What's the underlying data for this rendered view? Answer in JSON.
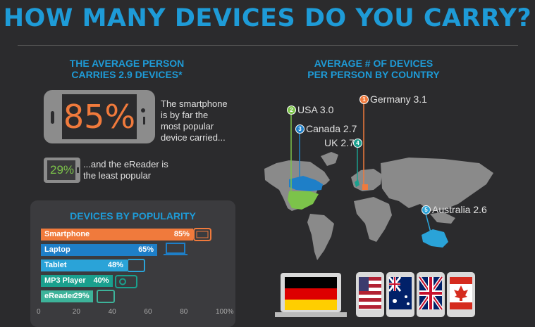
{
  "title": "HOW MANY DEVICES DO YOU CARRY?",
  "average": {
    "line1": "THE AVERAGE PERSON",
    "line2": "CARRIES 2.9 DEVICES*"
  },
  "smartphone_stat": {
    "value": "85%",
    "text": [
      "The smartphone",
      "is by far the",
      "most popular",
      "device carried..."
    ]
  },
  "ereader_stat": {
    "value": "29%",
    "text": [
      "...and the eReader is",
      "the least popular"
    ]
  },
  "popularity": {
    "title": "DEVICES BY POPULARITY"
  },
  "chart_data": {
    "type": "bar",
    "title": "DEVICES BY POPULARITY",
    "orientation": "horizontal",
    "categories": [
      "Smartphone",
      "Laptop",
      "Tablet",
      "MP3 Player",
      "eReader"
    ],
    "values": [
      85,
      65,
      48,
      40,
      29
    ],
    "value_labels": [
      "85%",
      "65%",
      "48%",
      "40%",
      "29%"
    ],
    "colors": [
      "#f07a3c",
      "#1e7fc8",
      "#2aa3d8",
      "#1aa08e",
      "#3db39a"
    ],
    "xlim": [
      0,
      100
    ],
    "xticks": [
      "0",
      "20",
      "40",
      "60",
      "80",
      "100%"
    ]
  },
  "country": {
    "title_line1": "AVERAGE # OF DEVICES",
    "title_line2": "PER PERSON BY COUNTRY",
    "entries": [
      {
        "rank": "1",
        "label": "Germany 3.1",
        "color": "#f07a3c"
      },
      {
        "rank": "2",
        "label": "USA 3.0",
        "color": "#7cc34a"
      },
      {
        "rank": "3",
        "label": "Canada 2.7",
        "color": "#1e7fc8"
      },
      {
        "rank": "4",
        "label": "UK 2.7",
        "color": "#1aa08e"
      },
      {
        "rank": "5",
        "label": "Australia 2.6",
        "color": "#2aa3d8"
      }
    ]
  },
  "colors": {
    "background": "#2b2b2d",
    "accent_blue": "#1e9bd7",
    "orange": "#f07a3c",
    "green": "#7cc34a"
  },
  "icons": [
    "smartphone-icon",
    "ereader-icon",
    "laptop-icon",
    "tablet-icon",
    "mp3-player-icon",
    "world-map",
    "germany-flag-laptop",
    "usa-flag-phone",
    "australia-flag-phone",
    "uk-flag-phone",
    "canada-flag-phone"
  ]
}
